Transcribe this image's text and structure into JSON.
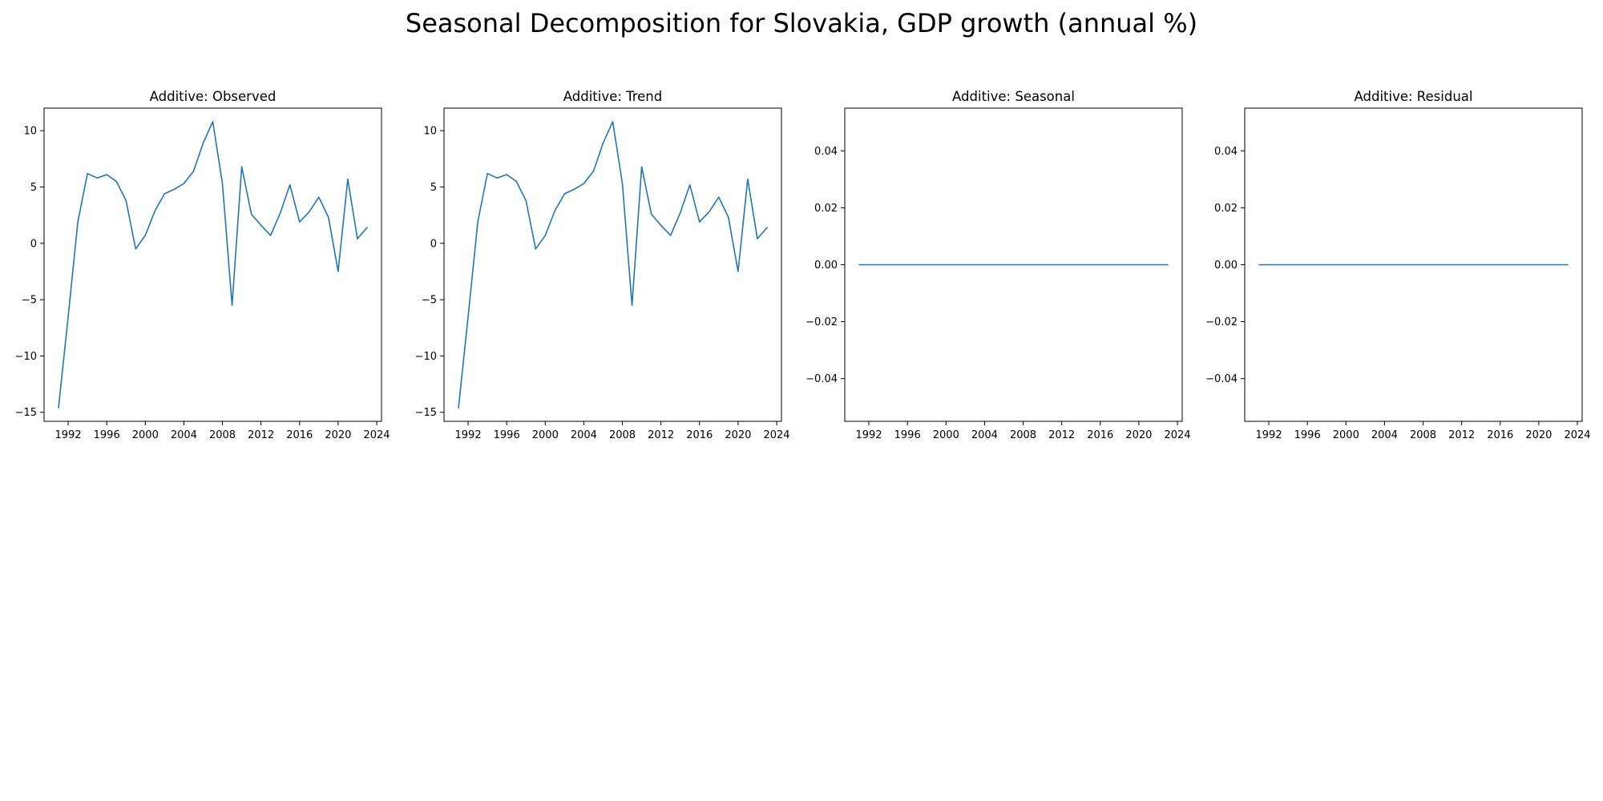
{
  "figure": {
    "suptitle": "Seasonal Decomposition for Slovakia, GDP growth (annual %)"
  },
  "chart_data": [
    {
      "type": "line",
      "title": "Additive: Observed",
      "xlabel": "",
      "ylabel": "",
      "xlim": [
        1989.5,
        2024.5
      ],
      "ylim": [
        -15.8,
        12.0
      ],
      "xticks": [
        1992,
        1996,
        2000,
        2004,
        2008,
        2012,
        2016,
        2020,
        2024
      ],
      "yticks": [
        -15,
        -10,
        -5,
        0,
        5,
        10
      ],
      "ytick_labels": [
        "−15",
        "−10",
        "−5",
        "0",
        "5",
        "10"
      ],
      "grid": false,
      "line_color": "#1f77b4",
      "x": [
        1991,
        1992,
        1993,
        1994,
        1995,
        1996,
        1997,
        1998,
        1999,
        2000,
        2001,
        2002,
        2003,
        2004,
        2005,
        2006,
        2007,
        2008,
        2009,
        2010,
        2011,
        2012,
        2013,
        2014,
        2015,
        2016,
        2017,
        2018,
        2019,
        2020,
        2021,
        2022,
        2023
      ],
      "series": [
        {
          "values": [
            -14.6,
            -6.5,
            1.9,
            6.2,
            5.8,
            6.1,
            5.5,
            3.8,
            -0.5,
            0.7,
            2.9,
            4.4,
            4.8,
            5.3,
            6.4,
            8.9,
            10.8,
            5.3,
            -5.5,
            6.8,
            2.6,
            1.6,
            0.7,
            2.7,
            5.2,
            1.9,
            2.8,
            4.1,
            2.3,
            -2.5,
            5.7,
            0.4,
            1.4
          ]
        }
      ]
    },
    {
      "type": "line",
      "title": "Additive: Trend",
      "xlabel": "",
      "ylabel": "",
      "xlim": [
        1989.5,
        2024.5
      ],
      "ylim": [
        -15.8,
        12.0
      ],
      "xticks": [
        1992,
        1996,
        2000,
        2004,
        2008,
        2012,
        2016,
        2020,
        2024
      ],
      "yticks": [
        -15,
        -10,
        -5,
        0,
        5,
        10
      ],
      "ytick_labels": [
        "−15",
        "−10",
        "−5",
        "0",
        "5",
        "10"
      ],
      "grid": false,
      "line_color": "#1f77b4",
      "x": [
        1991,
        1992,
        1993,
        1994,
        1995,
        1996,
        1997,
        1998,
        1999,
        2000,
        2001,
        2002,
        2003,
        2004,
        2005,
        2006,
        2007,
        2008,
        2009,
        2010,
        2011,
        2012,
        2013,
        2014,
        2015,
        2016,
        2017,
        2018,
        2019,
        2020,
        2021,
        2022,
        2023
      ],
      "series": [
        {
          "values": [
            -14.6,
            -6.5,
            1.9,
            6.2,
            5.8,
            6.1,
            5.5,
            3.8,
            -0.5,
            0.7,
            2.9,
            4.4,
            4.8,
            5.3,
            6.4,
            8.9,
            10.8,
            5.3,
            -5.5,
            6.8,
            2.6,
            1.6,
            0.7,
            2.7,
            5.2,
            1.9,
            2.8,
            4.1,
            2.3,
            -2.5,
            5.7,
            0.4,
            1.4
          ]
        }
      ]
    },
    {
      "type": "line",
      "title": "Additive: Seasonal",
      "xlabel": "",
      "ylabel": "",
      "xlim": [
        1989.5,
        2024.5
      ],
      "ylim": [
        -0.055,
        0.055
      ],
      "xticks": [
        1992,
        1996,
        2000,
        2004,
        2008,
        2012,
        2016,
        2020,
        2024
      ],
      "yticks": [
        -0.04,
        -0.02,
        0.0,
        0.02,
        0.04
      ],
      "ytick_labels": [
        "−0.04",
        "−0.02",
        "0.00",
        "0.02",
        "0.04"
      ],
      "grid": false,
      "line_color": "#1f77b4",
      "x": [
        1991,
        2023
      ],
      "series": [
        {
          "values": [
            0.0,
            0.0
          ]
        }
      ]
    },
    {
      "type": "line",
      "title": "Additive: Residual",
      "xlabel": "",
      "ylabel": "",
      "xlim": [
        1989.5,
        2024.5
      ],
      "ylim": [
        -0.055,
        0.055
      ],
      "xticks": [
        1992,
        1996,
        2000,
        2004,
        2008,
        2012,
        2016,
        2020,
        2024
      ],
      "yticks": [
        -0.04,
        -0.02,
        0.0,
        0.02,
        0.04
      ],
      "ytick_labels": [
        "−0.04",
        "−0.02",
        "0.00",
        "0.02",
        "0.04"
      ],
      "grid": false,
      "line_color": "#1f77b4",
      "x": [
        1991,
        2023
      ],
      "series": [
        {
          "values": [
            0.0,
            0.0
          ]
        }
      ]
    }
  ]
}
